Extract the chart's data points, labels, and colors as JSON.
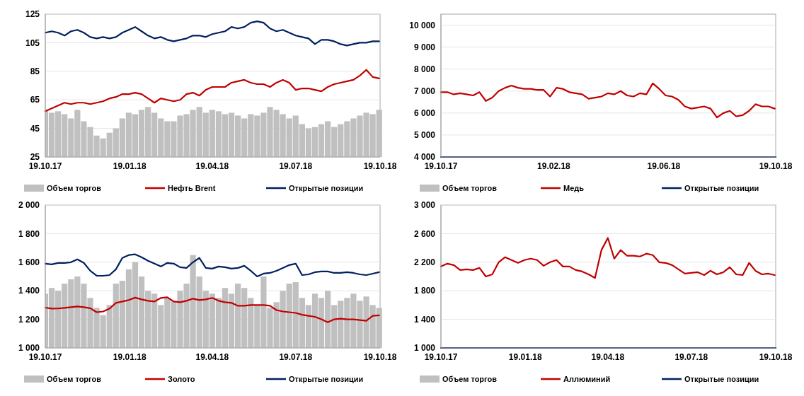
{
  "chart_data": [
    {
      "type": "line",
      "x": [
        "2017-10-19",
        "2017-10-26",
        "2017-11-02",
        "2017-11-09",
        "2017-11-16",
        "2017-11-23",
        "2017-11-30",
        "2017-12-07",
        "2017-12-14",
        "2017-12-21",
        "2017-12-28",
        "2018-01-04",
        "2018-01-11",
        "2018-01-18",
        "2018-01-25",
        "2018-02-01",
        "2018-02-08",
        "2018-02-15",
        "2018-02-22",
        "2018-03-01",
        "2018-03-08",
        "2018-03-15",
        "2018-03-22",
        "2018-03-29",
        "2018-04-05",
        "2018-04-12",
        "2018-04-19",
        "2018-04-26",
        "2018-05-03",
        "2018-05-10",
        "2018-05-17",
        "2018-05-24",
        "2018-05-31",
        "2018-06-07",
        "2018-06-14",
        "2018-06-21",
        "2018-06-28",
        "2018-07-05",
        "2018-07-12",
        "2018-07-19",
        "2018-07-26",
        "2018-08-02",
        "2018-08-09",
        "2018-08-16",
        "2018-08-23",
        "2018-08-30",
        "2018-09-06",
        "2018-09-13",
        "2018-09-20",
        "2018-09-27",
        "2018-10-04",
        "2018-10-11",
        "2018-10-18"
      ],
      "series": [
        {
          "name": "Объем торгов",
          "type": "bar",
          "color": "#c0c0c0",
          "values": [
            58,
            56,
            57,
            55,
            52,
            58,
            50,
            46,
            40,
            38,
            42,
            45,
            52,
            56,
            55,
            58,
            60,
            56,
            52,
            50,
            50,
            54,
            55,
            58,
            60,
            56,
            58,
            57,
            55,
            56,
            54,
            52,
            55,
            54,
            56,
            60,
            58,
            55,
            52,
            54,
            48,
            45,
            46,
            48,
            50,
            46,
            48,
            50,
            52,
            54,
            56,
            55,
            58
          ]
        },
        {
          "name": "Нефть Brent",
          "color": "#c00000",
          "values": [
            57,
            59,
            61,
            63,
            62,
            63,
            63,
            62,
            63,
            64,
            66,
            67,
            69,
            69,
            70,
            69,
            66,
            63,
            66,
            65,
            64,
            65,
            69,
            70,
            68,
            72,
            74,
            74,
            74,
            77,
            78,
            79,
            77,
            76,
            76,
            74,
            77,
            79,
            77,
            72,
            73,
            73,
            72,
            71,
            74,
            76,
            77,
            78,
            79,
            82,
            86,
            81,
            80
          ]
        },
        {
          "name": "Открытые позиции",
          "type": "line",
          "color": "#002060",
          "values": [
            112,
            113,
            112,
            110,
            113,
            114,
            112,
            109,
            108,
            109,
            108,
            109,
            112,
            114,
            116,
            113,
            110,
            108,
            109,
            107,
            106,
            107,
            108,
            110,
            110,
            109,
            111,
            112,
            113,
            116,
            115,
            116,
            119,
            120,
            119,
            115,
            113,
            114,
            112,
            110,
            109,
            108,
            104,
            107,
            107,
            106,
            104,
            103,
            104,
            105,
            105,
            106,
            106
          ]
        }
      ],
      "xlim": [
        "2017-10-19",
        "2018-10-19"
      ],
      "xticks": [
        {
          "value": "2017-10-19",
          "label": "19.10.17"
        },
        {
          "value": "2018-01-19",
          "label": "19.01.18"
        },
        {
          "value": "2018-04-19",
          "label": "19.04.18"
        },
        {
          "value": "2018-07-19",
          "label": "19.07.18"
        },
        {
          "value": "2018-10-19",
          "label": "19.10.18"
        }
      ],
      "ylim": [
        25,
        125
      ],
      "yticks": [
        25,
        45,
        65,
        85,
        105,
        125
      ],
      "grid": "y",
      "legend": "bottom"
    },
    {
      "type": "line",
      "x": [
        "2017-10-19",
        "2017-10-26",
        "2017-11-02",
        "2017-11-09",
        "2017-11-16",
        "2017-11-23",
        "2017-11-30",
        "2017-12-07",
        "2017-12-14",
        "2017-12-21",
        "2017-12-28",
        "2018-01-04",
        "2018-01-11",
        "2018-01-18",
        "2018-01-25",
        "2018-02-01",
        "2018-02-08",
        "2018-02-15",
        "2018-02-22",
        "2018-03-01",
        "2018-03-08",
        "2018-03-15",
        "2018-03-22",
        "2018-03-29",
        "2018-04-05",
        "2018-04-12",
        "2018-04-19",
        "2018-04-26",
        "2018-05-03",
        "2018-05-10",
        "2018-05-17",
        "2018-05-24",
        "2018-05-31",
        "2018-06-07",
        "2018-06-14",
        "2018-06-21",
        "2018-06-28",
        "2018-07-05",
        "2018-07-12",
        "2018-07-19",
        "2018-07-26",
        "2018-08-02",
        "2018-08-09",
        "2018-08-16",
        "2018-08-23",
        "2018-08-30",
        "2018-09-06",
        "2018-09-13",
        "2018-09-20",
        "2018-09-27",
        "2018-10-04",
        "2018-10-11",
        "2018-10-18"
      ],
      "series": [
        {
          "name": "Объем торгов",
          "type": "bar",
          "color": "#c0c0c0",
          "values": [
            null,
            null,
            null,
            null,
            null,
            null,
            null,
            null,
            null,
            null,
            null,
            null,
            null,
            null,
            null,
            null,
            null,
            null,
            null,
            null,
            null,
            null,
            null,
            null,
            null,
            null,
            null,
            null,
            null,
            null,
            null,
            null,
            null,
            null,
            null,
            null,
            null,
            null,
            null,
            null,
            null,
            null,
            null,
            null,
            null,
            null,
            null,
            null,
            null,
            null,
            null,
            null,
            null
          ]
        },
        {
          "name": "Медь",
          "color": "#c00000",
          "values": [
            6950,
            6950,
            6850,
            6900,
            6850,
            6800,
            6950,
            6550,
            6700,
            7000,
            7150,
            7250,
            7150,
            7100,
            7100,
            7050,
            7050,
            6750,
            7150,
            7100,
            6950,
            6900,
            6850,
            6650,
            6700,
            6750,
            6900,
            6850,
            7000,
            6800,
            6750,
            6900,
            6850,
            7350,
            7100,
            6800,
            6750,
            6600,
            6300,
            6200,
            6250,
            6300,
            6200,
            5800,
            6000,
            6100,
            5850,
            5900,
            6100,
            6400,
            6300,
            6300,
            6200
          ]
        },
        {
          "name": "Открытые позиции",
          "type": "line",
          "color": "#002060",
          "x": [
            "2017-10-19",
            "2018-10-19"
          ],
          "values": [
            4000,
            4000
          ]
        }
      ],
      "xlim": [
        "2017-10-19",
        "2018-10-19"
      ],
      "xticks": [
        {
          "value": "2017-10-19",
          "label": "19.10.17"
        },
        {
          "value": "2018-02-19",
          "label": "19.02.18"
        },
        {
          "value": "2018-06-19",
          "label": "19.06.18"
        },
        {
          "value": "2018-10-19",
          "label": "19.10.18"
        }
      ],
      "ylim": [
        4000,
        10500
      ],
      "yticks": [
        {
          "value": 4000,
          "label": "4 000"
        },
        {
          "value": 5000,
          "label": "5 000"
        },
        {
          "value": 6000,
          "label": "6 000"
        },
        {
          "value": 7000,
          "label": "7 000"
        },
        {
          "value": 8000,
          "label": "8 000"
        },
        {
          "value": 9000,
          "label": "9 000"
        },
        {
          "value": 10000,
          "label": "10 000"
        }
      ],
      "grid": "y",
      "legend": "bottom"
    },
    {
      "type": "line",
      "x": [
        "2017-10-19",
        "2017-10-26",
        "2017-11-02",
        "2017-11-09",
        "2017-11-16",
        "2017-11-23",
        "2017-11-30",
        "2017-12-07",
        "2017-12-14",
        "2017-12-21",
        "2017-12-28",
        "2018-01-04",
        "2018-01-11",
        "2018-01-18",
        "2018-01-25",
        "2018-02-01",
        "2018-02-08",
        "2018-02-15",
        "2018-02-22",
        "2018-03-01",
        "2018-03-08",
        "2018-03-15",
        "2018-03-22",
        "2018-03-29",
        "2018-04-05",
        "2018-04-12",
        "2018-04-19",
        "2018-04-26",
        "2018-05-03",
        "2018-05-10",
        "2018-05-17",
        "2018-05-24",
        "2018-05-31",
        "2018-06-07",
        "2018-06-14",
        "2018-06-21",
        "2018-06-28",
        "2018-07-05",
        "2018-07-12",
        "2018-07-19",
        "2018-07-26",
        "2018-08-02",
        "2018-08-09",
        "2018-08-16",
        "2018-08-23",
        "2018-08-30",
        "2018-09-06",
        "2018-09-13",
        "2018-09-20",
        "2018-09-27",
        "2018-10-04",
        "2018-10-11",
        "2018-10-18"
      ],
      "series": [
        {
          "name": "Объем торгов",
          "type": "bar",
          "color": "#c0c0c0",
          "values": [
            1380,
            1420,
            1400,
            1450,
            1480,
            1500,
            1450,
            1350,
            1280,
            1230,
            1300,
            1450,
            1470,
            1550,
            1600,
            1500,
            1400,
            1380,
            1300,
            1350,
            1330,
            1400,
            1450,
            1650,
            1500,
            1400,
            1380,
            1350,
            1420,
            1380,
            1450,
            1420,
            1350,
            1300,
            1500,
            1280,
            1320,
            1400,
            1450,
            1460,
            1350,
            1300,
            1380,
            1350,
            1400,
            1300,
            1330,
            1350,
            1380,
            1330,
            1360,
            1300,
            1280
          ]
        },
        {
          "name": "Золото",
          "color": "#c00000",
          "values": [
            1282,
            1275,
            1276,
            1280,
            1285,
            1290,
            1285,
            1278,
            1250,
            1255,
            1275,
            1315,
            1325,
            1335,
            1352,
            1340,
            1330,
            1325,
            1350,
            1355,
            1325,
            1320,
            1330,
            1345,
            1335,
            1340,
            1350,
            1330,
            1320,
            1315,
            1295,
            1295,
            1300,
            1300,
            1300,
            1295,
            1265,
            1255,
            1250,
            1245,
            1232,
            1225,
            1218,
            1200,
            1180,
            1200,
            1205,
            1200,
            1200,
            1195,
            1190,
            1225,
            1228
          ]
        },
        {
          "name": "Открытые позиции",
          "type": "line",
          "color": "#002060",
          "values": [
            1590,
            1585,
            1595,
            1595,
            1600,
            1620,
            1595,
            1540,
            1505,
            1505,
            1510,
            1550,
            1630,
            1650,
            1655,
            1635,
            1610,
            1590,
            1570,
            1595,
            1590,
            1565,
            1560,
            1600,
            1630,
            1560,
            1555,
            1570,
            1565,
            1555,
            1560,
            1575,
            1540,
            1500,
            1520,
            1525,
            1540,
            1560,
            1580,
            1590,
            1510,
            1515,
            1530,
            1535,
            1535,
            1525,
            1525,
            1530,
            1525,
            1515,
            1510,
            1520,
            1530
          ]
        }
      ],
      "xlim": [
        "2017-10-19",
        "2018-10-19"
      ],
      "xticks": [
        {
          "value": "2017-10-19",
          "label": "19.10.17"
        },
        {
          "value": "2018-01-19",
          "label": "19.01.18"
        },
        {
          "value": "2018-04-19",
          "label": "19.04.18"
        },
        {
          "value": "2018-07-19",
          "label": "19.07.18"
        },
        {
          "value": "2018-10-19",
          "label": "19.10.18"
        }
      ],
      "ylim": [
        1000,
        2000
      ],
      "yticks": [
        {
          "value": 1000,
          "label": "1 000"
        },
        {
          "value": 1200,
          "label": "1 200"
        },
        {
          "value": 1400,
          "label": "1 400"
        },
        {
          "value": 1600,
          "label": "1 600"
        },
        {
          "value": 1800,
          "label": "1 800"
        },
        {
          "value": 2000,
          "label": "2 000"
        }
      ],
      "grid": "y",
      "legend": "bottom"
    },
    {
      "type": "line",
      "x": [
        "2017-10-19",
        "2017-10-26",
        "2017-11-02",
        "2017-11-09",
        "2017-11-16",
        "2017-11-23",
        "2017-11-30",
        "2017-12-07",
        "2017-12-14",
        "2017-12-21",
        "2017-12-28",
        "2018-01-04",
        "2018-01-11",
        "2018-01-18",
        "2018-01-25",
        "2018-02-01",
        "2018-02-08",
        "2018-02-15",
        "2018-02-22",
        "2018-03-01",
        "2018-03-08",
        "2018-03-15",
        "2018-03-22",
        "2018-03-29",
        "2018-04-05",
        "2018-04-12",
        "2018-04-19",
        "2018-04-26",
        "2018-05-03",
        "2018-05-10",
        "2018-05-17",
        "2018-05-24",
        "2018-05-31",
        "2018-06-07",
        "2018-06-14",
        "2018-06-21",
        "2018-06-28",
        "2018-07-05",
        "2018-07-12",
        "2018-07-19",
        "2018-07-26",
        "2018-08-02",
        "2018-08-09",
        "2018-08-16",
        "2018-08-23",
        "2018-08-30",
        "2018-09-06",
        "2018-09-13",
        "2018-09-20",
        "2018-09-27",
        "2018-10-04",
        "2018-10-11",
        "2018-10-18"
      ],
      "series": [
        {
          "name": "Объем торгов",
          "type": "bar",
          "color": "#c0c0c0",
          "values": [
            null,
            null,
            null,
            null,
            null,
            null,
            null,
            null,
            null,
            null,
            null,
            null,
            null,
            null,
            null,
            null,
            null,
            null,
            null,
            null,
            null,
            null,
            null,
            null,
            null,
            null,
            null,
            null,
            null,
            null,
            null,
            null,
            null,
            null,
            null,
            null,
            null,
            null,
            null,
            null,
            null,
            null,
            null,
            null,
            null,
            null,
            null,
            null,
            null,
            null,
            null,
            null,
            null
          ]
        },
        {
          "name": "Аллюминий",
          "color": "#c00000",
          "values": [
            2140,
            2180,
            2160,
            2090,
            2100,
            2090,
            2120,
            2000,
            2030,
            2200,
            2270,
            2230,
            2190,
            2230,
            2250,
            2230,
            2150,
            2200,
            2230,
            2140,
            2140,
            2090,
            2070,
            2030,
            1980,
            2370,
            2540,
            2250,
            2370,
            2290,
            2290,
            2280,
            2320,
            2300,
            2200,
            2190,
            2160,
            2100,
            2040,
            2050,
            2060,
            2020,
            2080,
            2030,
            2060,
            2130,
            2030,
            2020,
            2190,
            2080,
            2030,
            2040,
            2020
          ]
        },
        {
          "name": "Открытые позиции",
          "type": "line",
          "color": "#002060",
          "x": [
            "2017-10-19",
            "2018-10-19"
          ],
          "values": [
            1000,
            1000
          ]
        }
      ],
      "xlim": [
        "2017-10-19",
        "2018-10-19"
      ],
      "xticks": [
        {
          "value": "2017-10-19",
          "label": "19.10.17"
        },
        {
          "value": "2018-01-19",
          "label": "19.01.18"
        },
        {
          "value": "2018-04-19",
          "label": "19.04.18"
        },
        {
          "value": "2018-07-19",
          "label": "19.07.18"
        },
        {
          "value": "2018-10-19",
          "label": "19.10.18"
        }
      ],
      "ylim": [
        1000,
        3000
      ],
      "yticks": [
        {
          "value": 1000,
          "label": "1 000"
        },
        {
          "value": 1400,
          "label": "1 400"
        },
        {
          "value": 1800,
          "label": "1 800"
        },
        {
          "value": 2200,
          "label": "2 200"
        },
        {
          "value": 2600,
          "label": "2 600"
        },
        {
          "value": 3000,
          "label": "3 000"
        }
      ],
      "grid": "y",
      "legend": "bottom"
    }
  ]
}
